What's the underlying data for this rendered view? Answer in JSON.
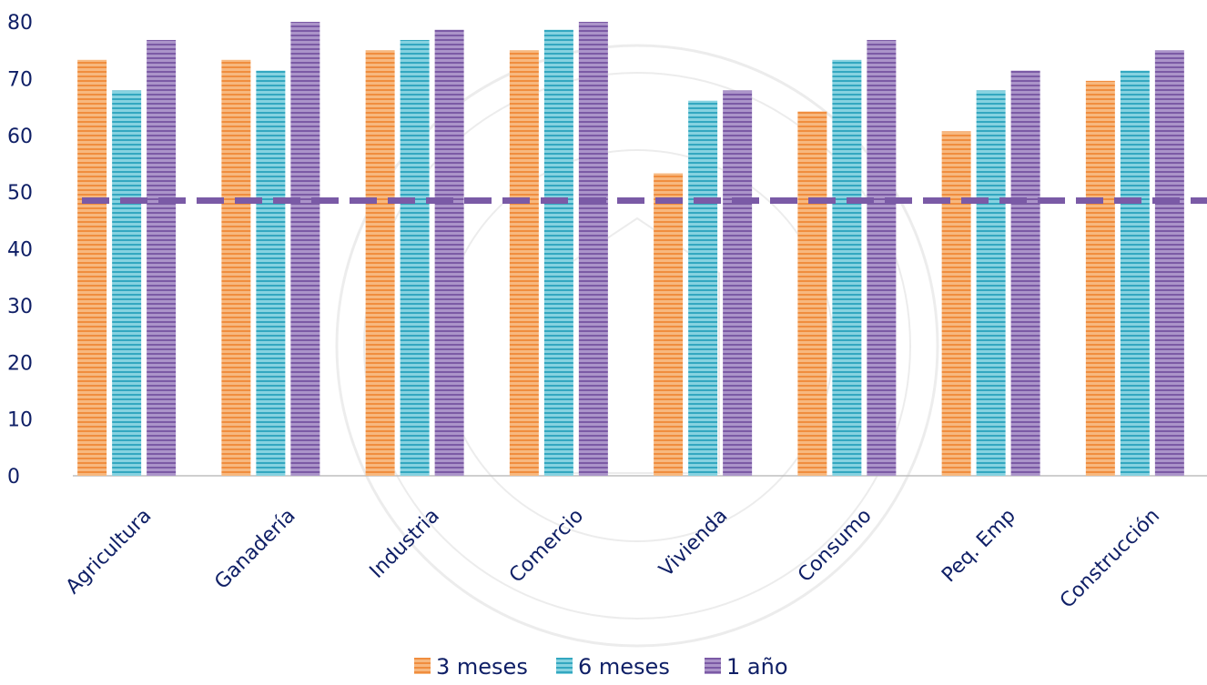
{
  "chart_data": {
    "type": "bar",
    "categories": [
      "Agricultura",
      "Ganadería",
      "Industria",
      "Comercio",
      "Vivienda",
      "Consumo",
      "Peq. Emp",
      "Construcción"
    ],
    "series": [
      {
        "name": "3 meses",
        "color": "#f5a259",
        "values": [
          73.3,
          73.3,
          75.0,
          75.0,
          53.3,
          64.2,
          60.7,
          69.6
        ]
      },
      {
        "name": "6 meses",
        "color": "#4fbbd0",
        "values": [
          67.9,
          71.4,
          76.8,
          78.6,
          66.1,
          73.3,
          67.9,
          71.4
        ]
      },
      {
        "name": "1 año",
        "color": "#8c6bb1",
        "values": [
          76.8,
          80.0,
          78.6,
          80.0,
          67.9,
          76.8,
          71.4,
          75.0
        ]
      }
    ],
    "reference_line": {
      "value": 48.5,
      "color": "#7a5aa6",
      "style": "dashed"
    },
    "ylim": [
      0,
      80
    ],
    "yticks": [
      "0",
      "10",
      "20",
      "30",
      "40",
      "50",
      "60",
      "70",
      "80"
    ],
    "grid": false,
    "legend_position": "bottom",
    "title": "",
    "xlabel": "",
    "ylabel": ""
  }
}
